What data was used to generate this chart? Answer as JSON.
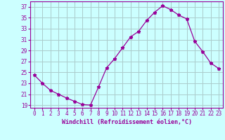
{
  "x": [
    0,
    1,
    2,
    3,
    4,
    5,
    6,
    7,
    8,
    9,
    10,
    11,
    12,
    13,
    14,
    15,
    16,
    17,
    18,
    19,
    20,
    21,
    22,
    23
  ],
  "y": [
    24.5,
    23.0,
    21.7,
    21.0,
    20.3,
    19.7,
    19.1,
    19.0,
    22.3,
    25.8,
    27.5,
    29.5,
    31.5,
    32.5,
    34.5,
    36.0,
    37.2,
    36.5,
    35.5,
    34.8,
    30.7,
    28.8,
    26.7,
    25.7
  ],
  "line_color": "#990099",
  "marker": "*",
  "bg_color": "#ccffff",
  "grid_color": "#aacccc",
  "xlabel": "Windchill (Refroidissement éolien,°C)",
  "yticks": [
    19,
    21,
    23,
    25,
    27,
    29,
    31,
    33,
    35,
    37
  ],
  "xlim": [
    -0.5,
    23.5
  ],
  "ylim": [
    18.5,
    38.0
  ],
  "xticks": [
    0,
    1,
    2,
    3,
    4,
    5,
    6,
    7,
    8,
    9,
    10,
    11,
    12,
    13,
    14,
    15,
    16,
    17,
    18,
    19,
    20,
    21,
    22,
    23
  ],
  "axis_fontsize": 5.5,
  "label_fontsize": 6.0
}
